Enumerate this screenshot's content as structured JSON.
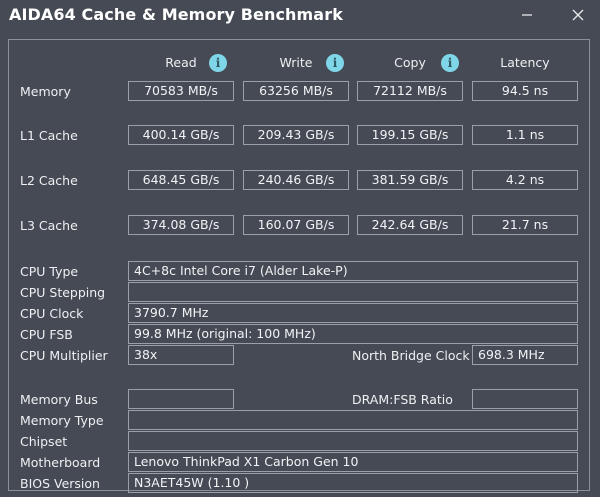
{
  "window": {
    "title": "AIDA64 Cache & Memory Benchmark"
  },
  "columns": {
    "read": "Read",
    "write": "Write",
    "copy": "Copy",
    "latency": "Latency"
  },
  "bench": [
    {
      "label": "Memory",
      "read": "70583 MB/s",
      "write": "63256 MB/s",
      "copy": "72112 MB/s",
      "latency": "94.5 ns"
    },
    {
      "label": "L1 Cache",
      "read": "400.14 GB/s",
      "write": "209.43 GB/s",
      "copy": "199.15 GB/s",
      "latency": "1.1 ns"
    },
    {
      "label": "L2 Cache",
      "read": "648.45 GB/s",
      "write": "240.46 GB/s",
      "copy": "381.59 GB/s",
      "latency": "4.2 ns"
    },
    {
      "label": "L3 Cache",
      "read": "374.08 GB/s",
      "write": "160.07 GB/s",
      "copy": "242.64 GB/s",
      "latency": "21.7 ns"
    }
  ],
  "cpu": {
    "type_label": "CPU Type",
    "type_value": "4C+8c Intel Core i7  (Alder Lake-P)",
    "stepping_label": "CPU Stepping",
    "stepping_value": "",
    "clock_label": "CPU Clock",
    "clock_value": "3790.7 MHz",
    "fsb_label": "CPU FSB",
    "fsb_value": "99.8 MHz  (original: 100 MHz)",
    "multiplier_label": "CPU Multiplier",
    "multiplier_value": "38x",
    "nb_clock_label": "North Bridge Clock",
    "nb_clock_value": "698.3 MHz"
  },
  "memory_info": {
    "bus_label": "Memory Bus",
    "bus_value": "",
    "dram_fsb_label": "DRAM:FSB Ratio",
    "dram_fsb_value": "",
    "type_label": "Memory Type",
    "type_value": "",
    "chipset_label": "Chipset",
    "chipset_value": "",
    "motherboard_label": "Motherboard",
    "motherboard_value": "Lenovo ThinkPad X1 Carbon Gen 10",
    "bios_label": "BIOS Version",
    "bios_value": "N3AET45W (1.10 )"
  },
  "icons": {
    "info": "info-icon",
    "minimize": "minimize-icon",
    "close": "close-icon"
  }
}
